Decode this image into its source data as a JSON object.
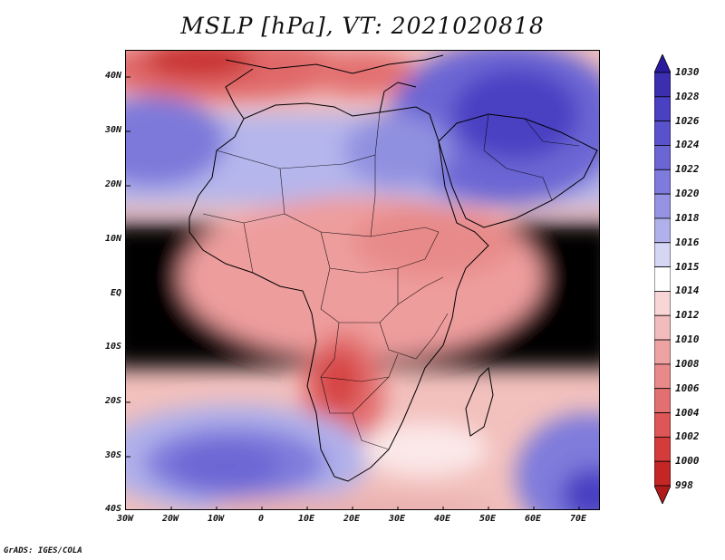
{
  "title": "MSLP [hPa], VT: 2021020818",
  "credit": "GrADS: IGES/COLA",
  "axes": {
    "y_ticks": [
      "40N",
      "30N",
      "20N",
      "10N",
      "EQ",
      "10S",
      "20S",
      "30S",
      "40S"
    ],
    "x_ticks": [
      "30W",
      "20W",
      "10W",
      "0",
      "10E",
      "20E",
      "30E",
      "40E",
      "50E",
      "60E",
      "70E"
    ]
  },
  "colorbar": {
    "levels": [
      "1030",
      "1028",
      "1026",
      "1024",
      "1022",
      "1020",
      "1018",
      "1016",
      "1015",
      "1014",
      "1012",
      "1010",
      "1008",
      "1006",
      "1004",
      "1002",
      "1000",
      "998"
    ],
    "colors": [
      "#2a1a9e",
      "#3b2fb0",
      "#4a40c2",
      "#5a52cc",
      "#6c66d4",
      "#7f7bdc",
      "#9593e2",
      "#b0b0ea",
      "#d4d6f4",
      "#ffffff",
      "#f8d6d6",
      "#f3bcbc",
      "#eea3a3",
      "#e88a8a",
      "#e37070",
      "#de5656",
      "#d43c3c",
      "#c42626",
      "#b01a1a"
    ]
  },
  "map": {
    "region": "Africa",
    "lon_range": [
      -30,
      75
    ],
    "lat_range": [
      -40,
      45
    ]
  }
}
